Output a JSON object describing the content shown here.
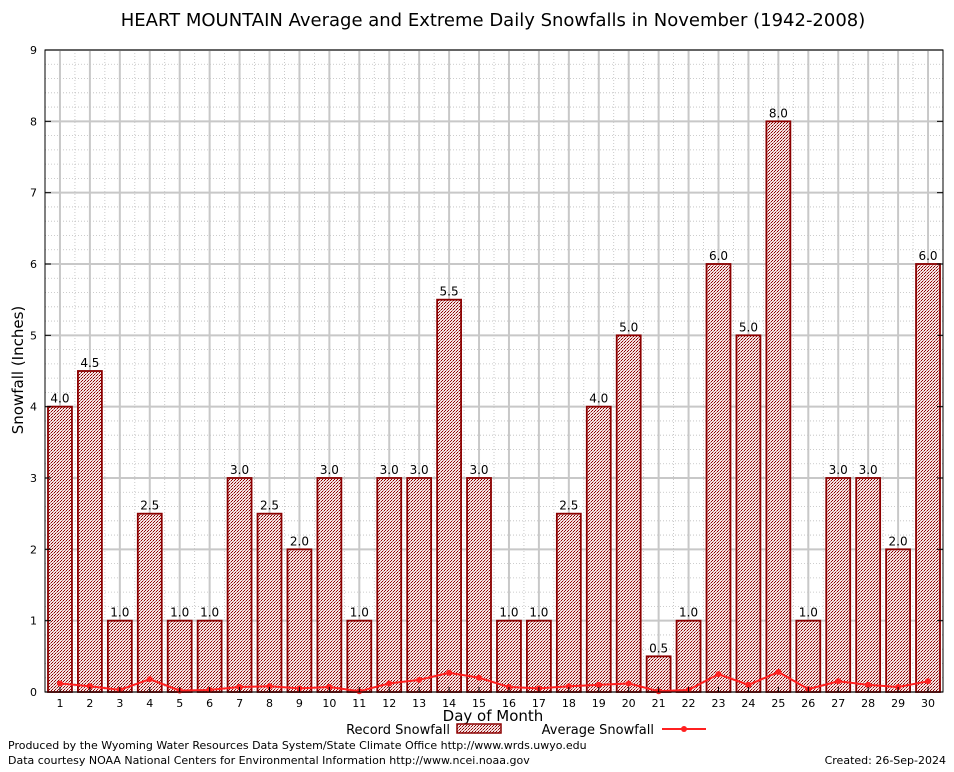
{
  "chart_data": {
    "type": "bar",
    "title": "HEART MOUNTAIN Average and Extreme Daily Snowfalls in November (1942-2008)",
    "xlabel": "Day of Month",
    "ylabel": "Snowfall (Inches)",
    "ylim": [
      0,
      9
    ],
    "yticks": [
      "0",
      "1",
      "2",
      "3",
      "4",
      "5",
      "6",
      "7",
      "8",
      "9"
    ],
    "grid": true,
    "legend_position": "bottom",
    "categories": [
      "1",
      "2",
      "3",
      "4",
      "5",
      "6",
      "7",
      "8",
      "9",
      "10",
      "11",
      "12",
      "13",
      "14",
      "15",
      "16",
      "17",
      "18",
      "19",
      "20",
      "21",
      "22",
      "23",
      "24",
      "25",
      "26",
      "27",
      "28",
      "29",
      "30"
    ],
    "series": [
      {
        "name": "Record Snowfall",
        "kind": "bar",
        "color": "#8b0000",
        "values": [
          4.0,
          4.5,
          1.0,
          2.5,
          1.0,
          1.0,
          3.0,
          2.5,
          2.0,
          3.0,
          1.0,
          3.0,
          3.0,
          5.5,
          3.0,
          1.0,
          1.0,
          2.5,
          4.0,
          5.0,
          0.5,
          1.0,
          6.0,
          5.0,
          8.0,
          1.0,
          3.0,
          3.0,
          2.0,
          6.0
        ],
        "labels": [
          "4.0",
          "4.5",
          "1.0",
          "2.5",
          "1.0",
          "1.0",
          "3.0",
          "2.5",
          "2.0",
          "3.0",
          "1.0",
          "3.0",
          "3.0",
          "5.5",
          "3.0",
          "1.0",
          "1.0",
          "2.5",
          "4.0",
          "5.0",
          "0.5",
          "1.0",
          "6.0",
          "5.0",
          "8.0",
          "1.0",
          "3.0",
          "3.0",
          "2.0",
          "6.0"
        ]
      },
      {
        "name": "Average Snowfall",
        "kind": "line",
        "color": "#ff2020",
        "values": [
          0.12,
          0.08,
          0.03,
          0.18,
          0.02,
          0.03,
          0.07,
          0.08,
          0.05,
          0.07,
          0.01,
          0.12,
          0.17,
          0.27,
          0.2,
          0.07,
          0.05,
          0.08,
          0.1,
          0.12,
          0.01,
          0.03,
          0.25,
          0.1,
          0.28,
          0.04,
          0.15,
          0.1,
          0.07,
          0.15
        ]
      }
    ]
  },
  "footer": {
    "produced_by": "Produced by the Wyoming Water Resources Data System/State Climate Office http://www.wrds.uwyo.edu",
    "data_courtesy": "Data courtesy NOAA National Centers for Environmental Information http://www.ncei.noaa.gov",
    "created": "Created:  26-Sep-2024"
  }
}
